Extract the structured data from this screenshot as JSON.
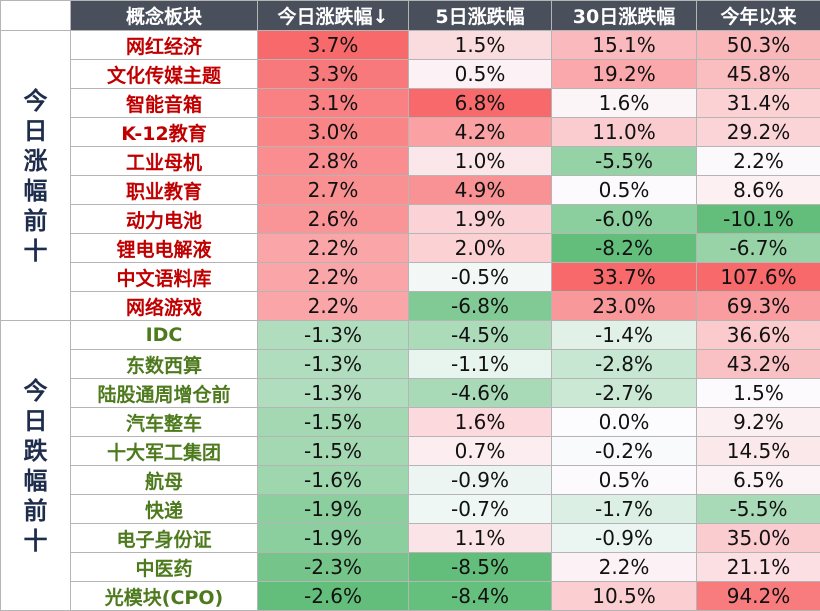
{
  "headers": [
    "概念板块",
    "今日涨跌幅↓",
    "5日涨跌幅",
    "30日涨跌幅",
    "今年以来"
  ],
  "groups": [
    {
      "label": "今日涨幅前十",
      "rows": [
        {
          "name": "网红经济",
          "d1": "3.7%",
          "d5": "1.5%",
          "d30": "15.1%",
          "ytd": "50.3%"
        },
        {
          "name": "文化传媒主题",
          "d1": "3.3%",
          "d5": "0.5%",
          "d30": "19.2%",
          "ytd": "45.8%"
        },
        {
          "name": "智能音箱",
          "d1": "3.1%",
          "d5": "6.8%",
          "d30": "1.6%",
          "ytd": "31.4%"
        },
        {
          "name": "K-12教育",
          "d1": "3.0%",
          "d5": "4.2%",
          "d30": "11.0%",
          "ytd": "29.2%"
        },
        {
          "name": "工业母机",
          "d1": "2.8%",
          "d5": "1.0%",
          "d30": "-5.5%",
          "ytd": "2.2%"
        },
        {
          "name": "职业教育",
          "d1": "2.7%",
          "d5": "4.9%",
          "d30": "0.5%",
          "ytd": "8.6%"
        },
        {
          "name": "动力电池",
          "d1": "2.6%",
          "d5": "1.9%",
          "d30": "-6.0%",
          "ytd": "-10.1%"
        },
        {
          "name": "锂电电解液",
          "d1": "2.2%",
          "d5": "2.0%",
          "d30": "-8.2%",
          "ytd": "-6.7%"
        },
        {
          "name": "中文语料库",
          "d1": "2.2%",
          "d5": "-0.5%",
          "d30": "33.7%",
          "ytd": "107.6%"
        },
        {
          "name": "网络游戏",
          "d1": "2.2%",
          "d5": "-6.8%",
          "d30": "23.0%",
          "ytd": "69.3%"
        }
      ]
    },
    {
      "label": "今日跌幅前十",
      "rows": [
        {
          "name": "IDC",
          "d1": "-1.3%",
          "d5": "-4.5%",
          "d30": "-1.4%",
          "ytd": "36.6%"
        },
        {
          "name": "东数西算",
          "d1": "-1.3%",
          "d5": "-1.1%",
          "d30": "-2.8%",
          "ytd": "43.2%"
        },
        {
          "name": "陆股通周增仓前",
          "d1": "-1.3%",
          "d5": "-4.6%",
          "d30": "-2.7%",
          "ytd": "1.5%"
        },
        {
          "name": "汽车整车",
          "d1": "-1.5%",
          "d5": "1.6%",
          "d30": "0.0%",
          "ytd": "9.2%"
        },
        {
          "name": "十大军工集团",
          "d1": "-1.5%",
          "d5": "0.7%",
          "d30": "-0.2%",
          "ytd": "14.5%"
        },
        {
          "name": "航母",
          "d1": "-1.6%",
          "d5": "-0.9%",
          "d30": "0.5%",
          "ytd": "6.5%"
        },
        {
          "name": "快递",
          "d1": "-1.9%",
          "d5": "-0.7%",
          "d30": "-1.7%",
          "ytd": "-5.5%"
        },
        {
          "name": "电子身份证",
          "d1": "-1.9%",
          "d5": "1.1%",
          "d30": "-0.9%",
          "ytd": "35.0%"
        },
        {
          "name": "中医药",
          "d1": "-2.3%",
          "d5": "-8.5%",
          "d30": "2.2%",
          "ytd": "21.1%"
        },
        {
          "name": "光模块(CPO)",
          "d1": "-2.6%",
          "d5": "-8.4%",
          "d30": "10.5%",
          "ytd": "94.2%"
        }
      ]
    }
  ],
  "colors": {
    "header_bg": "#4a4f5c",
    "up_text": "#c00000",
    "down_text": "#4e7a1e",
    "positive_strong": "#f8696b",
    "negative_strong": "#63be7b"
  }
}
